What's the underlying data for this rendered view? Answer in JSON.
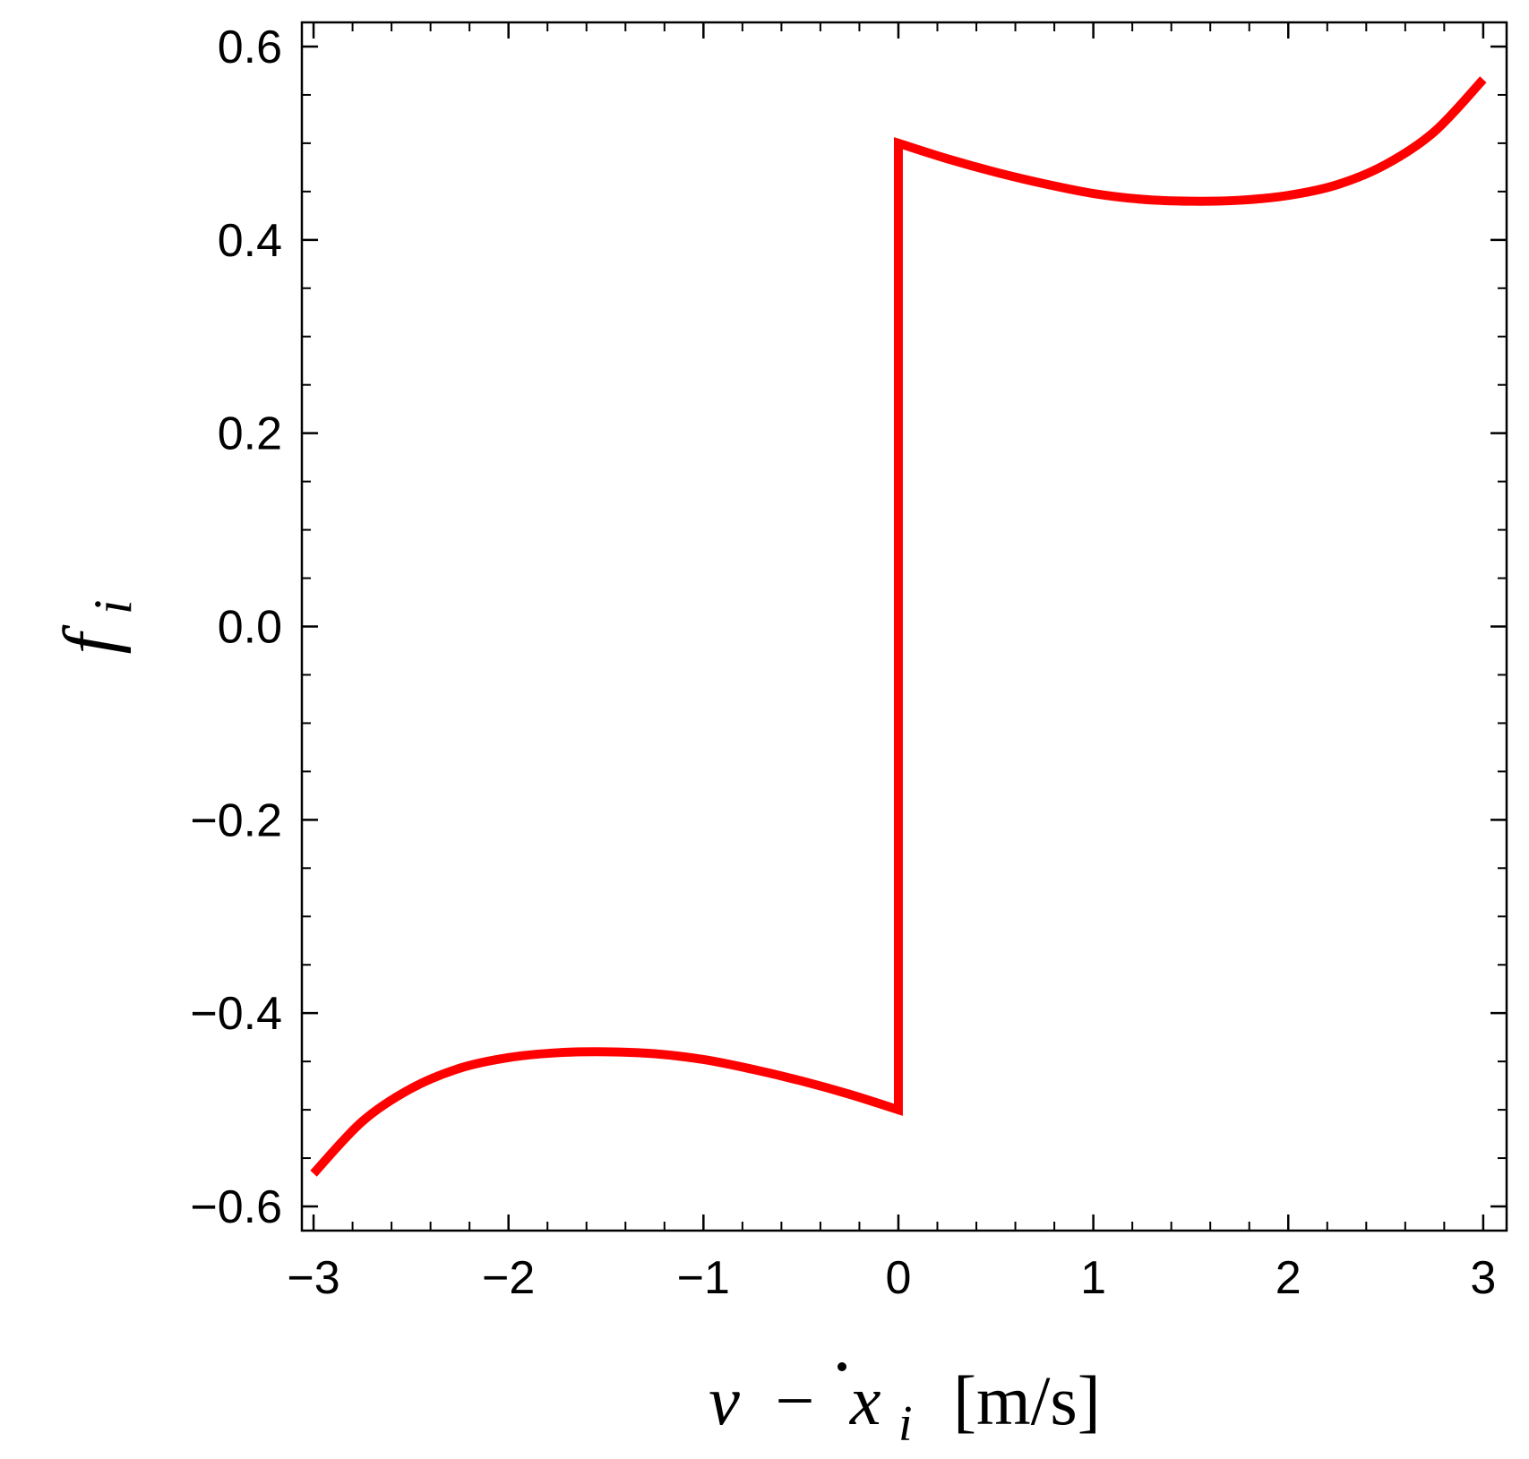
{
  "chart_data": {
    "type": "line",
    "title": "",
    "xlabel": {
      "var1": "v",
      "minus": "−",
      "var2": "x",
      "var2_sub": "i",
      "unit": "[m/s]"
    },
    "ylabel": {
      "var": "f",
      "sub": "i"
    },
    "xlim": [
      -3.06,
      3.12
    ],
    "ylim": [
      -0.625,
      0.625
    ],
    "x_ticks": [
      -3,
      -2,
      -1,
      0,
      1,
      2,
      3
    ],
    "x_tick_labels": [
      "−3",
      "−2",
      "−1",
      "0",
      "1",
      "2",
      "3"
    ],
    "y_ticks": [
      -0.6,
      -0.4,
      -0.2,
      0.0,
      0.2,
      0.4,
      0.6
    ],
    "y_tick_labels": [
      "−0.6",
      "−0.4",
      "−0.2",
      "0.0",
      "0.2",
      "0.4",
      "0.6"
    ],
    "grid": false,
    "series": [
      {
        "color": "#ff0000",
        "points": [
          [
            -3.0,
            -0.566
          ],
          [
            -2.75,
            -0.512
          ],
          [
            -2.5,
            -0.478
          ],
          [
            -2.25,
            -0.457
          ],
          [
            -2.0,
            -0.446
          ],
          [
            -1.75,
            -0.441
          ],
          [
            -1.5,
            -0.44
          ],
          [
            -1.25,
            -0.442
          ],
          [
            -1.0,
            -0.448
          ],
          [
            -0.75,
            -0.458
          ],
          [
            -0.5,
            -0.47
          ],
          [
            -0.25,
            -0.484
          ],
          [
            0.0,
            -0.5
          ],
          [
            0.0,
            0.5
          ],
          [
            0.25,
            0.484
          ],
          [
            0.5,
            0.47
          ],
          [
            0.75,
            0.458
          ],
          [
            1.0,
            0.448
          ],
          [
            1.25,
            0.442
          ],
          [
            1.5,
            0.44
          ],
          [
            1.75,
            0.441
          ],
          [
            2.0,
            0.446
          ],
          [
            2.25,
            0.457
          ],
          [
            2.5,
            0.478
          ],
          [
            2.75,
            0.512
          ],
          [
            3.0,
            0.566
          ]
        ]
      }
    ]
  }
}
